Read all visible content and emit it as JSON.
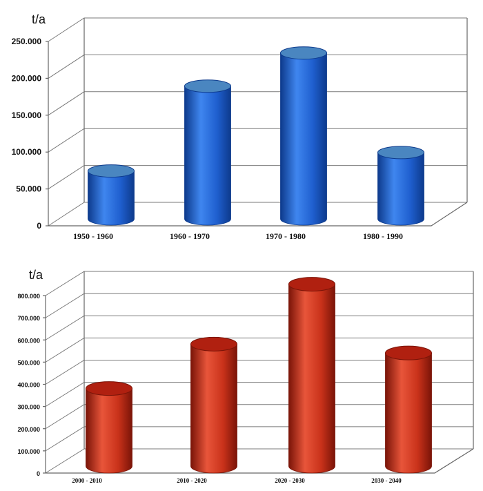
{
  "chart_data": [
    {
      "type": "bar",
      "style": "3d-cylinder",
      "title": "",
      "ylabel": "t/a",
      "xlabel": "",
      "categories": [
        "1950 - 1960",
        "1960 - 1970",
        "1970 - 1980",
        "1980 - 1990"
      ],
      "values": [
        65000,
        180000,
        225000,
        90000
      ],
      "ylim": [
        0,
        250000
      ],
      "yticks": [
        0,
        50000,
        100000,
        150000,
        200000,
        250000
      ],
      "ytick_labels": [
        "0",
        "50.000",
        "100.000",
        "150.000",
        "200.000",
        "250.000"
      ],
      "grid": true,
      "colors": {
        "body": "#1f5fcf",
        "body_dark": "#0d3a8c",
        "body_light": "#3f86ef",
        "top": "#4a86c0"
      }
    },
    {
      "type": "bar",
      "style": "3d-cylinder",
      "title": "",
      "ylabel": "t/a",
      "xlabel": "",
      "categories": [
        "2000 - 2010",
        "2010 - 2020",
        "2020 - 2030",
        "2030 - 2040"
      ],
      "values": [
        350000,
        550000,
        820000,
        510000
      ],
      "ylim": [
        0,
        800000
      ],
      "yticks": [
        0,
        100000,
        200000,
        300000,
        400000,
        500000,
        600000,
        700000,
        800000
      ],
      "ytick_labels": [
        "0",
        "100.000",
        "200.000",
        "300.000",
        "400.000",
        "500.000",
        "600.000",
        "700.000",
        "800.000"
      ],
      "grid": true,
      "colors": {
        "body": "#c9321a",
        "body_dark": "#7a1408",
        "body_light": "#e8553a",
        "top": "#b02010"
      }
    }
  ]
}
